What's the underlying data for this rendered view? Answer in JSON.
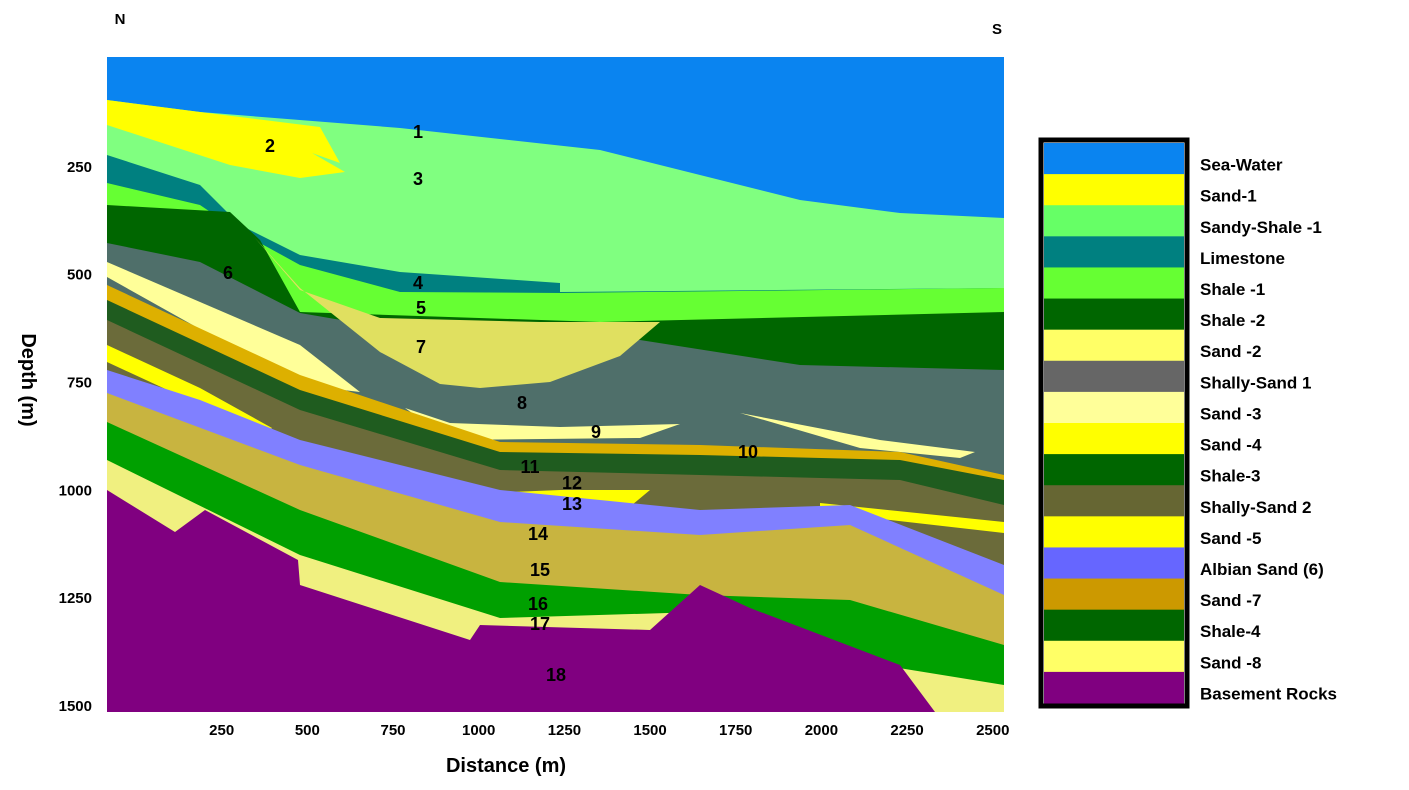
{
  "orientation": {
    "left": "N",
    "right": "S"
  },
  "x_axis": {
    "label": "Distance (m)",
    "ticks": [
      250,
      500,
      750,
      1000,
      1250,
      1500,
      1750,
      2000,
      2250,
      2500
    ]
  },
  "y_axis": {
    "label": "Depth (m)",
    "ticks": [
      250,
      500,
      750,
      1000,
      1250,
      1500
    ]
  },
  "layer_labels": [
    "1",
    "2",
    "3",
    "4",
    "5",
    "6",
    "7",
    "8",
    "9",
    "10",
    "11",
    "12",
    "13",
    "14",
    "15",
    "16",
    "17",
    "18"
  ],
  "legend": [
    {
      "label": "Sea-Water",
      "color": "#0a84f0"
    },
    {
      "label": "Sand-1",
      "color": "#ffff00"
    },
    {
      "label": "Sandy-Shale -1",
      "color": "#66ff66"
    },
    {
      "label": "Limestone",
      "color": "#008080"
    },
    {
      "label": "Shale -1",
      "color": "#66ff33"
    },
    {
      "label": "Shale -2",
      "color": "#006600"
    },
    {
      "label": "Sand -2",
      "color": "#ffff66"
    },
    {
      "label": "Shally-Sand 1",
      "color": "#666666"
    },
    {
      "label": "Sand -3",
      "color": "#ffff99"
    },
    {
      "label": "Sand -4",
      "color": "#ffff00"
    },
    {
      "label": "Shale-3",
      "color": "#006600"
    },
    {
      "label": "Shally-Sand 2",
      "color": "#666633"
    },
    {
      "label": "Sand -5",
      "color": "#ffff00"
    },
    {
      "label": "Albian Sand (6)",
      "color": "#6666ff"
    },
    {
      "label": "Sand -7",
      "color": "#cc9900"
    },
    {
      "label": "Shale-4",
      "color": "#006600"
    },
    {
      "label": "Sand -8",
      "color": "#ffff66"
    },
    {
      "label": "Basement Rocks",
      "color": "#800080"
    }
  ]
}
